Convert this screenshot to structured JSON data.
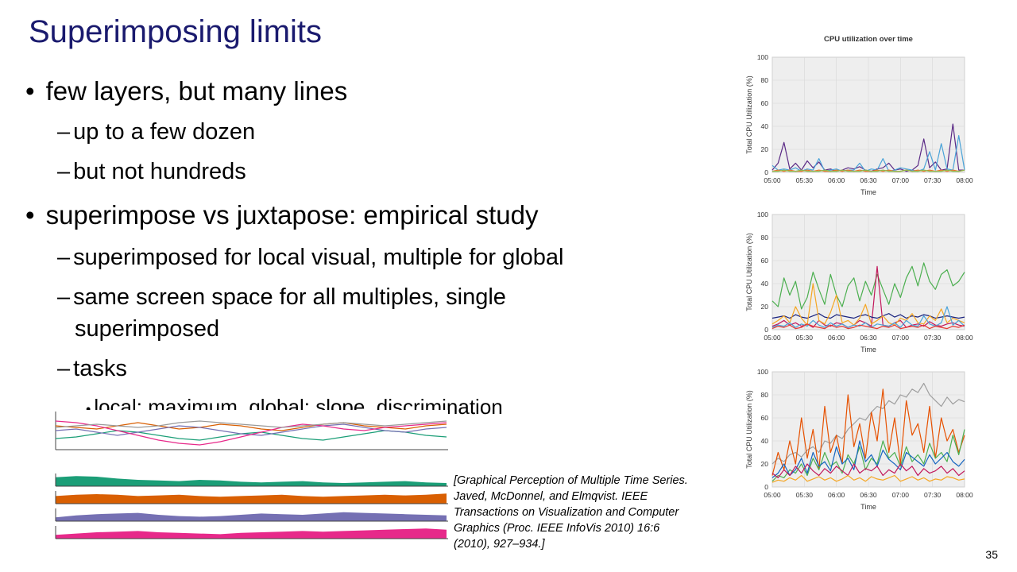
{
  "slide": {
    "title": "Superimposing limits",
    "bullets": [
      {
        "text": "few layers, but many lines"
      },
      {
        "text": "superimpose vs juxtapose: empirical study"
      }
    ],
    "sub1": [
      "up to a few dozen",
      "but not hundreds"
    ],
    "sub2": [
      "superimposed for local visual, multiple for global",
      "same screen space for all multiples, single",
      "superimposed",
      "tasks"
    ],
    "sub3": [
      "local: maximum, global: slope, discrimination"
    ],
    "bullet_glyph": "•",
    "dash_glyph": "–",
    "citation": "[Graphical Perception of Multiple Time Series. Javed, McDonnel, and Elmqvist. IEEE Transactions on Visualization and Computer Graphics (Proc. IEEE InfoVis 2010) 16:6 (2010), 927–934.]",
    "page_number": "35"
  },
  "chart_data": [
    {
      "type": "line",
      "title": "CPU utilization over time",
      "xlabel": "Time",
      "ylabel": "Total CPU Utilization (%)",
      "x_ticks": [
        "05:00",
        "05:30",
        "06:00",
        "06:30",
        "07:00",
        "07:30",
        "08:00"
      ],
      "y_ticks": [
        "0",
        "20",
        "40",
        "60",
        "80",
        "100"
      ],
      "ylim": [
        0,
        100
      ],
      "grid": true,
      "series_count": 4,
      "series": [
        {
          "color": "#5b2a86",
          "values": [
            2,
            8,
            26,
            3,
            8,
            2,
            10,
            4,
            9,
            2,
            3,
            1,
            2,
            4,
            3,
            5,
            2,
            1,
            3,
            4,
            8,
            2,
            3,
            1,
            2,
            6,
            29,
            4,
            9,
            2,
            3,
            42,
            2,
            2
          ]
        },
        {
          "color": "#4aa3d8",
          "values": [
            6,
            2,
            3,
            2,
            4,
            1,
            3,
            2,
            12,
            1,
            2,
            3,
            1,
            2,
            2,
            8,
            1,
            3,
            2,
            12,
            1,
            2,
            4,
            3,
            2,
            1,
            3,
            18,
            2,
            25,
            3,
            2,
            32,
            2
          ]
        },
        {
          "color": "#e6772e",
          "values": [
            1,
            2,
            1,
            2,
            1,
            1,
            2,
            1,
            2,
            1,
            1,
            2,
            1,
            2,
            1,
            2,
            1,
            1,
            2,
            1,
            2,
            1,
            1,
            2,
            1,
            2,
            1,
            2,
            1,
            2,
            1,
            2,
            1,
            2
          ]
        },
        {
          "color": "#8fb94b",
          "values": [
            1,
            1,
            2,
            1,
            1,
            2,
            1,
            1,
            1,
            2,
            1,
            1,
            2,
            1,
            1,
            1,
            2,
            1,
            1,
            2,
            1,
            1,
            1,
            2,
            1,
            1,
            2,
            1,
            1,
            1,
            2,
            1,
            1,
            2
          ]
        }
      ]
    },
    {
      "type": "line",
      "xlabel": "Time",
      "ylabel": "Total CPU Utilization (%)",
      "x_ticks": [
        "05:00",
        "05:30",
        "06:00",
        "06:30",
        "07:00",
        "07:30",
        "08:00"
      ],
      "y_ticks": [
        "0",
        "20",
        "40",
        "60",
        "80",
        "100"
      ],
      "ylim": [
        0,
        100
      ],
      "grid": true,
      "series_count": 12,
      "series": [
        {
          "color": "#4caf50",
          "values": [
            25,
            20,
            45,
            30,
            42,
            18,
            28,
            50,
            35,
            22,
            48,
            30,
            20,
            38,
            45,
            25,
            42,
            30,
            48,
            35,
            22,
            40,
            28,
            45,
            55,
            38,
            58,
            42,
            35,
            48,
            52,
            38,
            42,
            50
          ]
        },
        {
          "color": "#c2185b",
          "values": [
            3,
            5,
            8,
            4,
            6,
            3,
            5,
            2,
            8,
            4,
            3,
            6,
            5,
            2,
            4,
            8,
            6,
            3,
            55,
            4,
            3,
            6,
            8,
            2,
            4,
            5,
            3,
            7,
            4,
            3,
            5,
            6,
            4,
            3
          ]
        },
        {
          "color": "#1a237e",
          "values": [
            10,
            11,
            12,
            10,
            13,
            11,
            10,
            12,
            14,
            11,
            10,
            13,
            12,
            11,
            10,
            12,
            13,
            11,
            10,
            12,
            14,
            11,
            13,
            10,
            12,
            11,
            13,
            12,
            10,
            11,
            12,
            11,
            10,
            11
          ]
        },
        {
          "color": "#f5a623",
          "values": [
            5,
            8,
            12,
            6,
            20,
            10,
            4,
            40,
            8,
            5,
            15,
            30,
            6,
            8,
            4,
            10,
            22,
            5,
            8,
            12,
            6,
            4,
            10,
            8,
            14,
            6,
            5,
            12,
            8,
            18,
            6,
            10,
            8,
            6
          ]
        },
        {
          "color": "#4aa3d8",
          "values": [
            2,
            4,
            3,
            6,
            2,
            5,
            3,
            8,
            4,
            2,
            6,
            3,
            5,
            2,
            4,
            3,
            6,
            2,
            5,
            4,
            3,
            6,
            2,
            8,
            4,
            3,
            12,
            5,
            3,
            6,
            20,
            4,
            8,
            3
          ]
        },
        {
          "color": "#e53935",
          "values": [
            1,
            3,
            2,
            4,
            1,
            2,
            5,
            3,
            2,
            1,
            4,
            2,
            3,
            1,
            2,
            4,
            3,
            2,
            1,
            3,
            2,
            4,
            1,
            2,
            3,
            2,
            4,
            1,
            3,
            2,
            1,
            3,
            2,
            4
          ]
        }
      ]
    },
    {
      "type": "line",
      "xlabel": "Time",
      "ylabel": "Total CPU Utilization (%)",
      "x_ticks": [
        "05:00",
        "05:30",
        "06:00",
        "06:30",
        "07:00",
        "07:30",
        "08:00"
      ],
      "y_ticks": [
        "0",
        "20",
        "40",
        "60",
        "80",
        "100"
      ],
      "ylim": [
        0,
        100
      ],
      "grid": true,
      "series_count": 48,
      "series": [
        {
          "color": "#9e9e9e",
          "values": [
            20,
            25,
            22,
            28,
            30,
            26,
            32,
            35,
            30,
            40,
            38,
            45,
            42,
            50,
            55,
            60,
            58,
            65,
            70,
            68,
            75,
            72,
            80,
            78,
            85,
            82,
            90,
            80,
            75,
            70,
            78,
            72,
            76,
            74
          ]
        },
        {
          "color": "#e65100",
          "values": [
            10,
            30,
            15,
            40,
            20,
            60,
            25,
            50,
            15,
            70,
            30,
            45,
            20,
            80,
            35,
            55,
            25,
            65,
            40,
            85,
            30,
            60,
            20,
            75,
            45,
            55,
            30,
            70,
            25,
            60,
            40,
            50,
            30,
            45
          ]
        },
        {
          "color": "#4caf50",
          "values": [
            5,
            10,
            8,
            15,
            12,
            20,
            10,
            25,
            15,
            30,
            18,
            22,
            12,
            28,
            20,
            35,
            15,
            25,
            20,
            40,
            25,
            30,
            18,
            35,
            22,
            28,
            20,
            38,
            25,
            30,
            22,
            45,
            28,
            50
          ]
        },
        {
          "color": "#1565c0",
          "values": [
            8,
            12,
            20,
            10,
            15,
            25,
            12,
            30,
            18,
            22,
            14,
            35,
            20,
            25,
            15,
            40,
            22,
            28,
            18,
            32,
            24,
            20,
            15,
            30,
            26,
            22,
            18,
            28,
            20,
            25,
            30,
            22,
            18,
            24
          ]
        },
        {
          "color": "#c2185b",
          "values": [
            12,
            8,
            15,
            10,
            18,
            12,
            20,
            14,
            10,
            16,
            12,
            18,
            14,
            10,
            20,
            12,
            16,
            14,
            18,
            10,
            15,
            12,
            20,
            14,
            18,
            10,
            16,
            12,
            14,
            18,
            12,
            16,
            10,
            14
          ]
        },
        {
          "color": "#f5a623",
          "values": [
            4,
            6,
            5,
            8,
            6,
            10,
            5,
            7,
            9,
            6,
            8,
            5,
            7,
            10,
            6,
            8,
            5,
            9,
            7,
            6,
            8,
            10,
            5,
            7,
            9,
            6,
            8,
            5,
            7,
            6,
            9,
            8,
            6,
            7
          ]
        }
      ]
    }
  ],
  "juxtaposed_thumbnail": {
    "type": "line",
    "overlay_colors": [
      "#1b9e77",
      "#d95f02",
      "#7570b3",
      "#e7298a",
      "#999999"
    ],
    "band_colors": [
      "#1b9e77",
      "#d95f02",
      "#7570b3",
      "#e7298a"
    ],
    "overlay": [
      {
        "color": "#1b9e77",
        "values": [
          14,
          16,
          20,
          24,
          22,
          18,
          14,
          12,
          16,
          20,
          22,
          18,
          14,
          12,
          16,
          20,
          24,
          22,
          18,
          16
        ]
      },
      {
        "color": "#d95f02",
        "values": [
          30,
          28,
          26,
          30,
          34,
          30,
          26,
          28,
          32,
          30,
          26,
          24,
          28,
          32,
          34,
          30,
          28,
          26,
          30,
          32
        ]
      },
      {
        "color": "#7570b3",
        "values": [
          24,
          26,
          22,
          18,
          22,
          26,
          30,
          28,
          24,
          20,
          18,
          22,
          26,
          30,
          32,
          28,
          24,
          22,
          26,
          28
        ]
      },
      {
        "color": "#e7298a",
        "values": [
          36,
          34,
          30,
          24,
          18,
          12,
          8,
          6,
          10,
          16,
          22,
          28,
          32,
          30,
          26,
          24,
          28,
          30,
          32,
          34
        ]
      },
      {
        "color": "#999999",
        "values": [
          28,
          30,
          32,
          30,
          28,
          30,
          34,
          36,
          34,
          32,
          30,
          28,
          30,
          32,
          34,
          32,
          30,
          32,
          34,
          36
        ]
      }
    ],
    "bands": [
      {
        "color": "#1b9e77",
        "values": [
          0.7,
          0.8,
          0.75,
          0.6,
          0.5,
          0.45,
          0.4,
          0.5,
          0.45,
          0.35,
          0.3,
          0.35,
          0.4,
          0.3,
          0.25,
          0.3,
          0.35,
          0.4,
          0.3,
          0.25
        ]
      },
      {
        "color": "#d95f02",
        "values": [
          0.6,
          0.7,
          0.75,
          0.7,
          0.6,
          0.65,
          0.7,
          0.6,
          0.55,
          0.6,
          0.65,
          0.7,
          0.6,
          0.55,
          0.6,
          0.65,
          0.7,
          0.65,
          0.7,
          0.8
        ]
      },
      {
        "color": "#7570b3",
        "values": [
          0.3,
          0.45,
          0.55,
          0.6,
          0.65,
          0.5,
          0.4,
          0.35,
          0.4,
          0.5,
          0.6,
          0.55,
          0.5,
          0.6,
          0.7,
          0.65,
          0.6,
          0.55,
          0.5,
          0.45
        ]
      },
      {
        "color": "#e7298a",
        "values": [
          0.3,
          0.4,
          0.5,
          0.55,
          0.6,
          0.5,
          0.45,
          0.4,
          0.35,
          0.45,
          0.5,
          0.55,
          0.6,
          0.55,
          0.6,
          0.65,
          0.7,
          0.75,
          0.8,
          0.7
        ]
      }
    ]
  }
}
